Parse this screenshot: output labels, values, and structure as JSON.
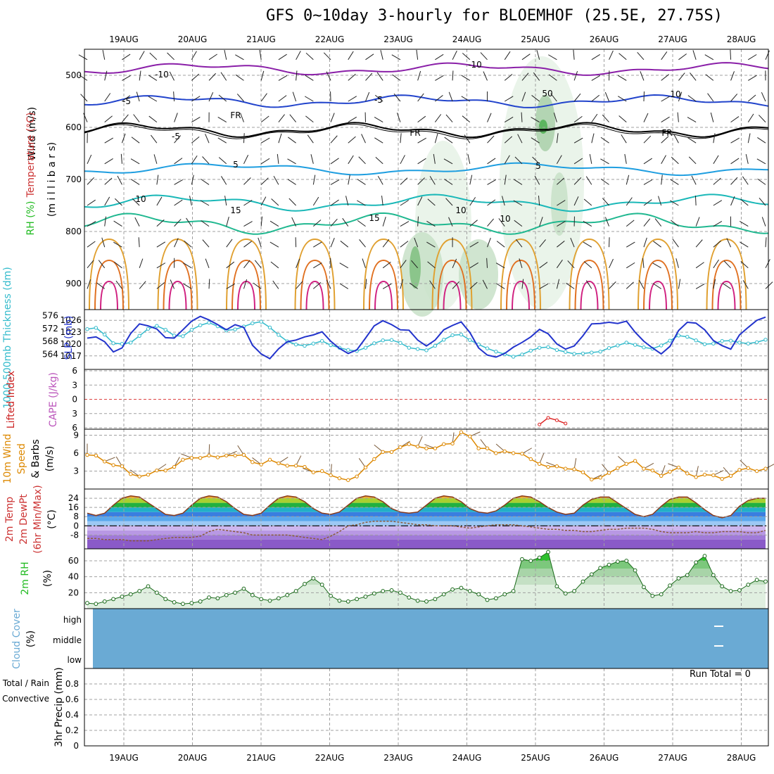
{
  "title": "GFS 0~10day 3-hourly for BLOEMHOF (25.5E, 27.75S)",
  "run_total": "Run Total = 0",
  "colors": {
    "wind": "#000000",
    "temperature": "#cc3333",
    "rh": "#22bb22",
    "thickness": "#33bbcc",
    "slp": "#2233cc",
    "lifted": "#cc2222",
    "cape": "#bb55bb",
    "wind10": "#dd8800",
    "cloud": "#6aaad4",
    "rain": "#22bb22",
    "convective": "#dd2222"
  },
  "chart_data": [
    {
      "type": "heatmap",
      "panel": "upper-air",
      "ylabels": [
        {
          "text": "Wind (m/s)",
          "color": "#000000"
        },
        {
          "text": "Temperature (°C)",
          "color": "#cc3333"
        },
        {
          "text": "RH (%)",
          "color": "#22bb22"
        }
      ],
      "unit_label": "(m i l l i b a r s)",
      "x_ticks": [
        "19AUG",
        "20AUG",
        "21AUG",
        "22AUG",
        "23AUG",
        "24AUG",
        "25AUG",
        "26AUG",
        "27AUG",
        "28AUG"
      ],
      "y_ticks": [
        500,
        600,
        700,
        800,
        900
      ],
      "ylim": [
        450,
        950
      ],
      "contour_labels": [
        "-10",
        "-10",
        "-5",
        "-5",
        "FR",
        "FR",
        "FR",
        "-5",
        "5",
        "5",
        "10",
        "10",
        "15",
        "15",
        "10",
        "10",
        "50"
      ]
    },
    {
      "type": "line",
      "panel": "thickness-slp",
      "ylabels": [
        {
          "text": "1000-500mb Thickness (dm)",
          "color": "#33bbcc"
        },
        {
          "text": "SLP (mb)",
          "color": "#2233cc"
        }
      ],
      "left_ticks": [
        564,
        568,
        572,
        576
      ],
      "right_ticks": [
        1017,
        1020,
        1023,
        1026
      ],
      "series": [
        {
          "name": "1000-500mb Thickness (dm)",
          "axis": "left",
          "values": [
            571.8,
            572.2,
            570.1,
            567.4,
            567.2,
            567.6,
            569.7,
            571.9,
            572.8,
            571.6,
            569.8,
            569.6,
            571.6,
            573.0,
            573.8,
            572.7,
            571.4,
            571.7,
            572.6,
            573.6,
            574.1,
            572.3,
            570.0,
            568.0,
            567.0,
            566.6,
            567.3,
            568.1,
            566.8,
            566.0,
            565.3,
            565.0,
            566.0,
            567.4,
            568.3,
            568.4,
            567.5,
            566.0,
            565.6,
            565.2,
            566.6,
            568.5,
            569.9,
            570.1,
            568.4,
            567.0,
            565.8,
            564.8,
            564.0,
            563.2,
            563.9,
            565.1,
            566.0,
            566.2,
            565.3,
            564.7,
            564.1,
            564.2,
            564.5,
            564.8,
            565.9,
            566.7,
            567.6,
            566.9,
            566.1,
            565.7,
            566.7,
            568.2,
            569.8,
            569.4,
            568.3,
            567.1,
            567.3,
            568.1,
            568.2,
            567.6,
            567.3,
            567.7,
            568.5
          ]
        },
        {
          "name": "SLP (mb)",
          "axis": "right",
          "values": [
            1021.5,
            1021.8,
            1020.6,
            1018.0,
            1019.0,
            1022.7,
            1025.1,
            1024.6,
            1023.8,
            1021.6,
            1021.5,
            1023.6,
            1025.8,
            1027.0,
            1026.1,
            1024.9,
            1023.6,
            1024.9,
            1024.2,
            1019.7,
            1017.5,
            1016.3,
            1018.8,
            1020.6,
            1021.0,
            1021.8,
            1022.3,
            1023.1,
            1020.7,
            1018.9,
            1017.6,
            1018.5,
            1021.5,
            1024.6,
            1025.9,
            1024.9,
            1023.6,
            1023.5,
            1021.0,
            1019.5,
            1021.0,
            1023.6,
            1024.7,
            1025.6,
            1022.9,
            1019.0,
            1017.2,
            1016.7,
            1017.6,
            1019.2,
            1020.4,
            1021.8,
            1023.7,
            1022.6,
            1020.0,
            1018.7,
            1019.5,
            1022.1,
            1025.1,
            1025.2,
            1025.5,
            1025.2,
            1025.8,
            1023.0,
            1020.7,
            1019.0,
            1017.5,
            1019.4,
            1023.4,
            1025.5,
            1025.3,
            1023.6,
            1020.9,
            1019.6,
            1018.7,
            1022.3,
            1024.2,
            1026.0,
            1026.8
          ]
        }
      ]
    },
    {
      "type": "line",
      "panel": "lifted-cape",
      "ylabels": [
        {
          "text": "Lifted Index",
          "color": "#cc2222"
        },
        {
          "text": "CAPE (J/kg)",
          "color": "#bb55bb"
        }
      ],
      "y_ticks": [
        -6,
        -3,
        0,
        3,
        6
      ],
      "y_tick_labels": [
        "6",
        "3",
        "0",
        "3",
        "6"
      ],
      "ylim": [
        -6,
        6
      ],
      "series": [
        {
          "name": "Lifted Index",
          "x_index": [
            52,
            53,
            54,
            55
          ],
          "values": [
            -5.3,
            -3.9,
            -4.4,
            -5.1
          ]
        }
      ]
    },
    {
      "type": "line",
      "panel": "wind10",
      "ylabels": [
        {
          "text": "10m Wind",
          "color": "#dd8800"
        },
        {
          "text": "Speed",
          "color": "#dd8800"
        },
        {
          "text": "& Barbs",
          "color": "#000000"
        },
        {
          "text": "(m/s)",
          "color": "#000000"
        }
      ],
      "y_ticks": [
        3,
        6,
        9
      ],
      "ylim": [
        0,
        10
      ],
      "series": [
        {
          "name": "10m Wind Speed",
          "values": [
            5.7,
            5.6,
            4.6,
            4.0,
            3.8,
            2.5,
            2.1,
            2.4,
            3.1,
            3.1,
            3.7,
            4.9,
            5.2,
            5.2,
            5.6,
            5.3,
            5.6,
            5.6,
            5.7,
            4.5,
            4.1,
            4.9,
            4.3,
            3.9,
            3.9,
            3.7,
            2.8,
            3.0,
            2.3,
            1.8,
            1.5,
            2.1,
            3.6,
            5.0,
            6.2,
            6.2,
            7.0,
            7.5,
            7.1,
            6.8,
            6.8,
            7.5,
            7.6,
            9.5,
            8.8,
            6.8,
            6.8,
            6.0,
            6.3,
            6.0,
            5.9,
            5.0,
            4.2,
            3.7,
            3.8,
            3.4,
            3.3,
            2.8,
            1.6,
            1.9,
            2.7,
            3.5,
            4.2,
            4.7,
            3.4,
            3.1,
            2.2,
            2.9,
            3.6,
            2.6,
            2.0,
            2.4,
            2.3,
            1.7,
            2.2,
            3.2,
            3.5,
            3.0,
            3.4
          ]
        }
      ]
    },
    {
      "type": "area",
      "panel": "temp-dewpt",
      "ylabels": [
        {
          "text": "2m Temp",
          "color": "#cc3333"
        },
        {
          "text": "2m DewPt",
          "color": "#cc3333"
        },
        {
          "text": "(6hr Min/Max)",
          "color": "#cc3333"
        },
        {
          "text": "(°C)",
          "color": "#000000"
        }
      ],
      "y_ticks": [
        -8,
        0,
        8,
        16,
        24
      ],
      "y_tick_labels": [
        "-8",
        "0",
        "8",
        "16",
        "24"
      ],
      "ylim": [
        -20,
        32
      ],
      "series": [
        {
          "name": "2m Temp",
          "values": [
            11,
            9,
            11,
            18,
            24,
            26,
            25,
            20,
            15,
            10,
            9,
            11,
            18,
            24,
            26,
            25,
            21,
            15,
            10,
            9,
            11,
            18,
            24,
            26,
            25,
            21,
            15,
            11,
            10,
            12,
            18,
            24,
            26,
            25,
            21,
            15,
            12,
            11,
            12,
            18,
            24,
            26,
            25,
            21,
            15,
            12,
            11,
            13,
            18,
            24,
            26,
            25,
            21,
            16,
            12,
            10,
            11,
            18,
            23,
            25,
            25,
            20,
            15,
            10,
            8,
            10,
            17,
            23,
            25,
            25,
            20,
            14,
            9,
            7,
            9,
            17,
            22,
            24,
            24
          ]
        },
        {
          "name": "2m DewPt",
          "values": [
            -11,
            -11,
            -12,
            -12,
            -12,
            -13,
            -13,
            -13,
            -12,
            -11,
            -10,
            -10,
            -10,
            -9,
            -5,
            -3,
            -4,
            -5,
            -6,
            -8,
            -8,
            -8,
            -8,
            -8,
            -9,
            -10,
            -11,
            -12,
            -9,
            -5,
            0,
            1,
            3,
            4,
            4,
            4,
            3,
            2,
            1,
            1,
            0,
            0,
            0,
            -1,
            -2,
            -1,
            0,
            1,
            1,
            1,
            0,
            -1,
            -2,
            -3,
            -3,
            -4,
            -4,
            -5,
            -5,
            -4,
            -3,
            -3,
            -2,
            -2,
            -2,
            -3,
            -5,
            -6,
            -6,
            -6,
            -5,
            -6,
            -6,
            -5,
            -5,
            -5,
            -6,
            -6,
            -4
          ]
        }
      ]
    },
    {
      "type": "area",
      "panel": "rh2m",
      "ylabels": [
        {
          "text": "2m RH",
          "color": "#22bb22"
        },
        {
          "text": "(%)",
          "color": "#000000"
        }
      ],
      "y_ticks": [
        20,
        40,
        60
      ],
      "ylim": [
        0,
        75
      ],
      "series": [
        {
          "name": "2m RH",
          "values": [
            7,
            6,
            9,
            12,
            15,
            18,
            22,
            28,
            20,
            12,
            8,
            6,
            7,
            9,
            14,
            13,
            17,
            20,
            25,
            17,
            12,
            10,
            13,
            17,
            22,
            31,
            38,
            30,
            16,
            10,
            9,
            12,
            15,
            19,
            22,
            23,
            20,
            14,
            10,
            9,
            12,
            18,
            24,
            26,
            22,
            18,
            11,
            13,
            18,
            22,
            62,
            60,
            64,
            71,
            28,
            19,
            22,
            34,
            43,
            51,
            55,
            59,
            60,
            48,
            27,
            16,
            18,
            29,
            38,
            42,
            58,
            66,
            42,
            28,
            22,
            23,
            30,
            36,
            34
          ]
        }
      ]
    },
    {
      "type": "heatmap",
      "panel": "cloud",
      "ylabels": [
        {
          "text": "Cloud Cover",
          "color": "#6aaad4"
        },
        {
          "text": "(%)",
          "color": "#000000"
        }
      ],
      "y_tick_labels": [
        "high",
        "middle",
        "low"
      ],
      "series": [
        {
          "name": "Cloud Cover",
          "values": [
            0,
            0,
            0
          ]
        }
      ]
    },
    {
      "type": "bar",
      "panel": "precip",
      "ylabels": [
        {
          "text": "Total / Rain",
          "color": "#22bb22"
        },
        {
          "text": "Convective",
          "color": "#dd2222"
        },
        {
          "text": "3hr Precip (mm)",
          "color": "#000000"
        }
      ],
      "y_ticks": [
        0,
        0.2,
        0.4,
        0.6,
        0.8
      ],
      "ylim": [
        0,
        1
      ],
      "series": [
        {
          "name": "Total / Rain",
          "values": [
            0
          ]
        },
        {
          "name": "Convective",
          "values": [
            0
          ]
        }
      ]
    }
  ]
}
